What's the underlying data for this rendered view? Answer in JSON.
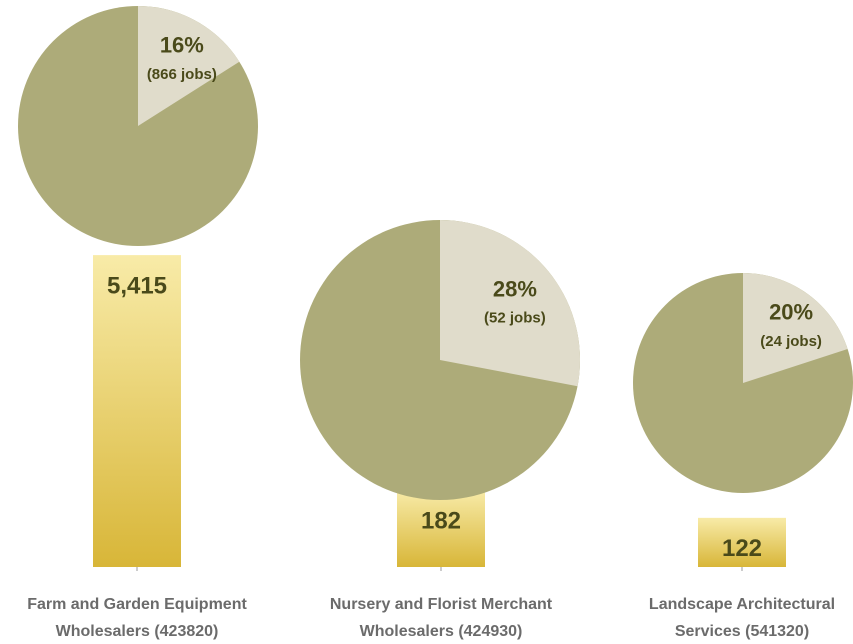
{
  "chart_data": {
    "type": "bar",
    "categories": [
      [
        "Farm and Garden Equipment",
        "Wholesalers (423820)"
      ],
      [
        "Nursery and Florist Merchant",
        "Wholesalers (424930)"
      ],
      [
        "Landscape Architectural",
        "Services (541320)"
      ]
    ],
    "values": [
      5415,
      182,
      122
    ],
    "value_labels": [
      "5,415",
      "182",
      "122"
    ],
    "color": "#e6c850",
    "log_scale": true,
    "ylim": [
      60,
      6000
    ],
    "pies": {
      "values": [
        16,
        28,
        20
      ],
      "value_labels": [
        "16%",
        "28%",
        "20%"
      ],
      "jobs": [
        866,
        52,
        24
      ],
      "jobs_labels": [
        "(866 jobs)",
        "(52 jobs)",
        "(24 jobs)"
      ],
      "color": "#adab79",
      "slice_color": "#e0dccb"
    }
  }
}
